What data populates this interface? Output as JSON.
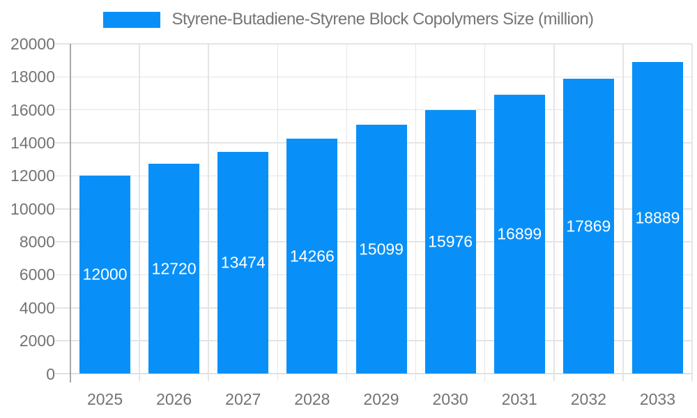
{
  "chart_data": {
    "type": "bar",
    "title": "Styrene-Butadiene-Styrene Block Copolymers Size (million)",
    "categories": [
      "2025",
      "2026",
      "2027",
      "2028",
      "2029",
      "2030",
      "2031",
      "2032",
      "2033"
    ],
    "values": [
      12000,
      12720,
      13474,
      14266,
      15099,
      15976,
      16899,
      17869,
      18889
    ],
    "xlabel": "",
    "ylabel": "",
    "ylim": [
      0,
      20000
    ],
    "yticks": [
      0,
      2000,
      4000,
      6000,
      8000,
      10000,
      12000,
      14000,
      16000,
      18000,
      20000
    ],
    "grid": true,
    "legend_position": "top",
    "bar_label_position": "inside-center",
    "colors": {
      "bar": "#0890F8",
      "bar_label": "#FFFFFF",
      "axis_text": "#737373",
      "legend_text": "#757575",
      "gridline": "#E4E4E4",
      "baseline": "#C8C8C8",
      "y_axis_line": "#A6A6A6",
      "background": "#FFFFFF"
    }
  }
}
